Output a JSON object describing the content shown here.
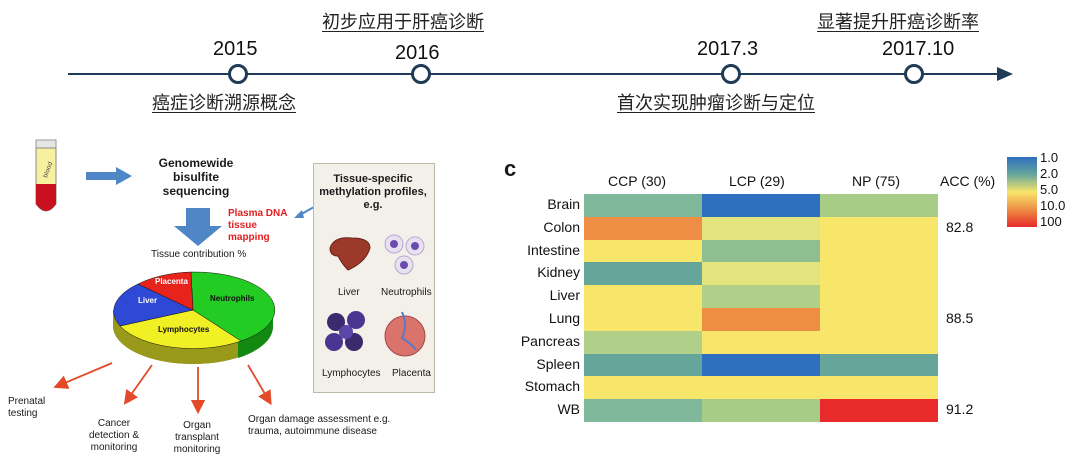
{
  "timeline": {
    "milestones": [
      {
        "year": "2015",
        "event": "癌症诊断溯源概念"
      },
      {
        "year": "2016",
        "event": "初步应用于肝癌诊断"
      },
      {
        "year": "2017.3",
        "event": "首次实现肿瘤诊断与定位"
      },
      {
        "year": "2017.10",
        "event": "显著提升肝癌诊断率"
      }
    ]
  },
  "diagram": {
    "tube_label": "blood",
    "sequencing": "Genomewide bisulfite sequencing",
    "mapping": "Plasma DNA tissue mapping",
    "profiles_title": "Tissue-specific methylation profiles, e.g.",
    "profile_images": [
      "Liver",
      "Neutrophils",
      "Lymphocytes",
      "Placenta"
    ],
    "pie_title": "Tissue contribution %",
    "pie_slices": [
      {
        "label": "Placenta",
        "color": "#e8231c"
      },
      {
        "label": "Liver",
        "color": "#2d49d6"
      },
      {
        "label": "Neutrophils",
        "color": "#22cc22"
      },
      {
        "label": "Lymphocytes",
        "color": "#f0f025"
      }
    ],
    "applications": [
      "Prenatal testing",
      "Cancer detection & monitoring",
      "Organ transplant monitoring",
      "Organ damage assessment e.g. trauma, autoimmune disease"
    ]
  },
  "heatmap": {
    "panel_letter": "c",
    "columns": [
      "CCP (30)",
      "LCP (29)",
      "NP (75)"
    ],
    "acc_header": "ACC (%)",
    "rows": [
      {
        "label": "Brain",
        "acc": ""
      },
      {
        "label": "Colon",
        "acc": "82.8"
      },
      {
        "label": "Intestine",
        "acc": ""
      },
      {
        "label": "Kidney",
        "acc": ""
      },
      {
        "label": "Liver",
        "acc": ""
      },
      {
        "label": "Lung",
        "acc": "88.5"
      },
      {
        "label": "Pancreas",
        "acc": ""
      },
      {
        "label": "Spleen",
        "acc": ""
      },
      {
        "label": "Stomach",
        "acc": ""
      },
      {
        "label": "WB",
        "acc": "91.2"
      }
    ],
    "cell_colors": [
      [
        "#7fb89a",
        "#2f6fc0",
        "#a6cc86"
      ],
      [
        "#ee8e45",
        "#e3e47e",
        "#f7e66a"
      ],
      [
        "#f7e66a",
        "#8dbf91",
        "#f7e66a"
      ],
      [
        "#66a69a",
        "#e3e47e",
        "#f7e66a"
      ],
      [
        "#f7e66a",
        "#b0d08a",
        "#f7e66a"
      ],
      [
        "#f7e66a",
        "#ee8e45",
        "#f7e66a"
      ],
      [
        "#b0d08a",
        "#f7e66a",
        "#f7e66a"
      ],
      [
        "#66a69a",
        "#2f6fc0",
        "#66a69a"
      ],
      [
        "#f7e66a",
        "#f7e66a",
        "#f7e66a"
      ],
      [
        "#7fb89a",
        "#a6cc86",
        "#e82a2a"
      ]
    ],
    "legend_ticks": [
      "1.0",
      "2.0",
      "5.0",
      "10.0",
      "100"
    ],
    "legend_colors": [
      "#2f6fc0",
      "#66a69a",
      "#f7e66a",
      "#ee8e45",
      "#e82a2a"
    ]
  }
}
